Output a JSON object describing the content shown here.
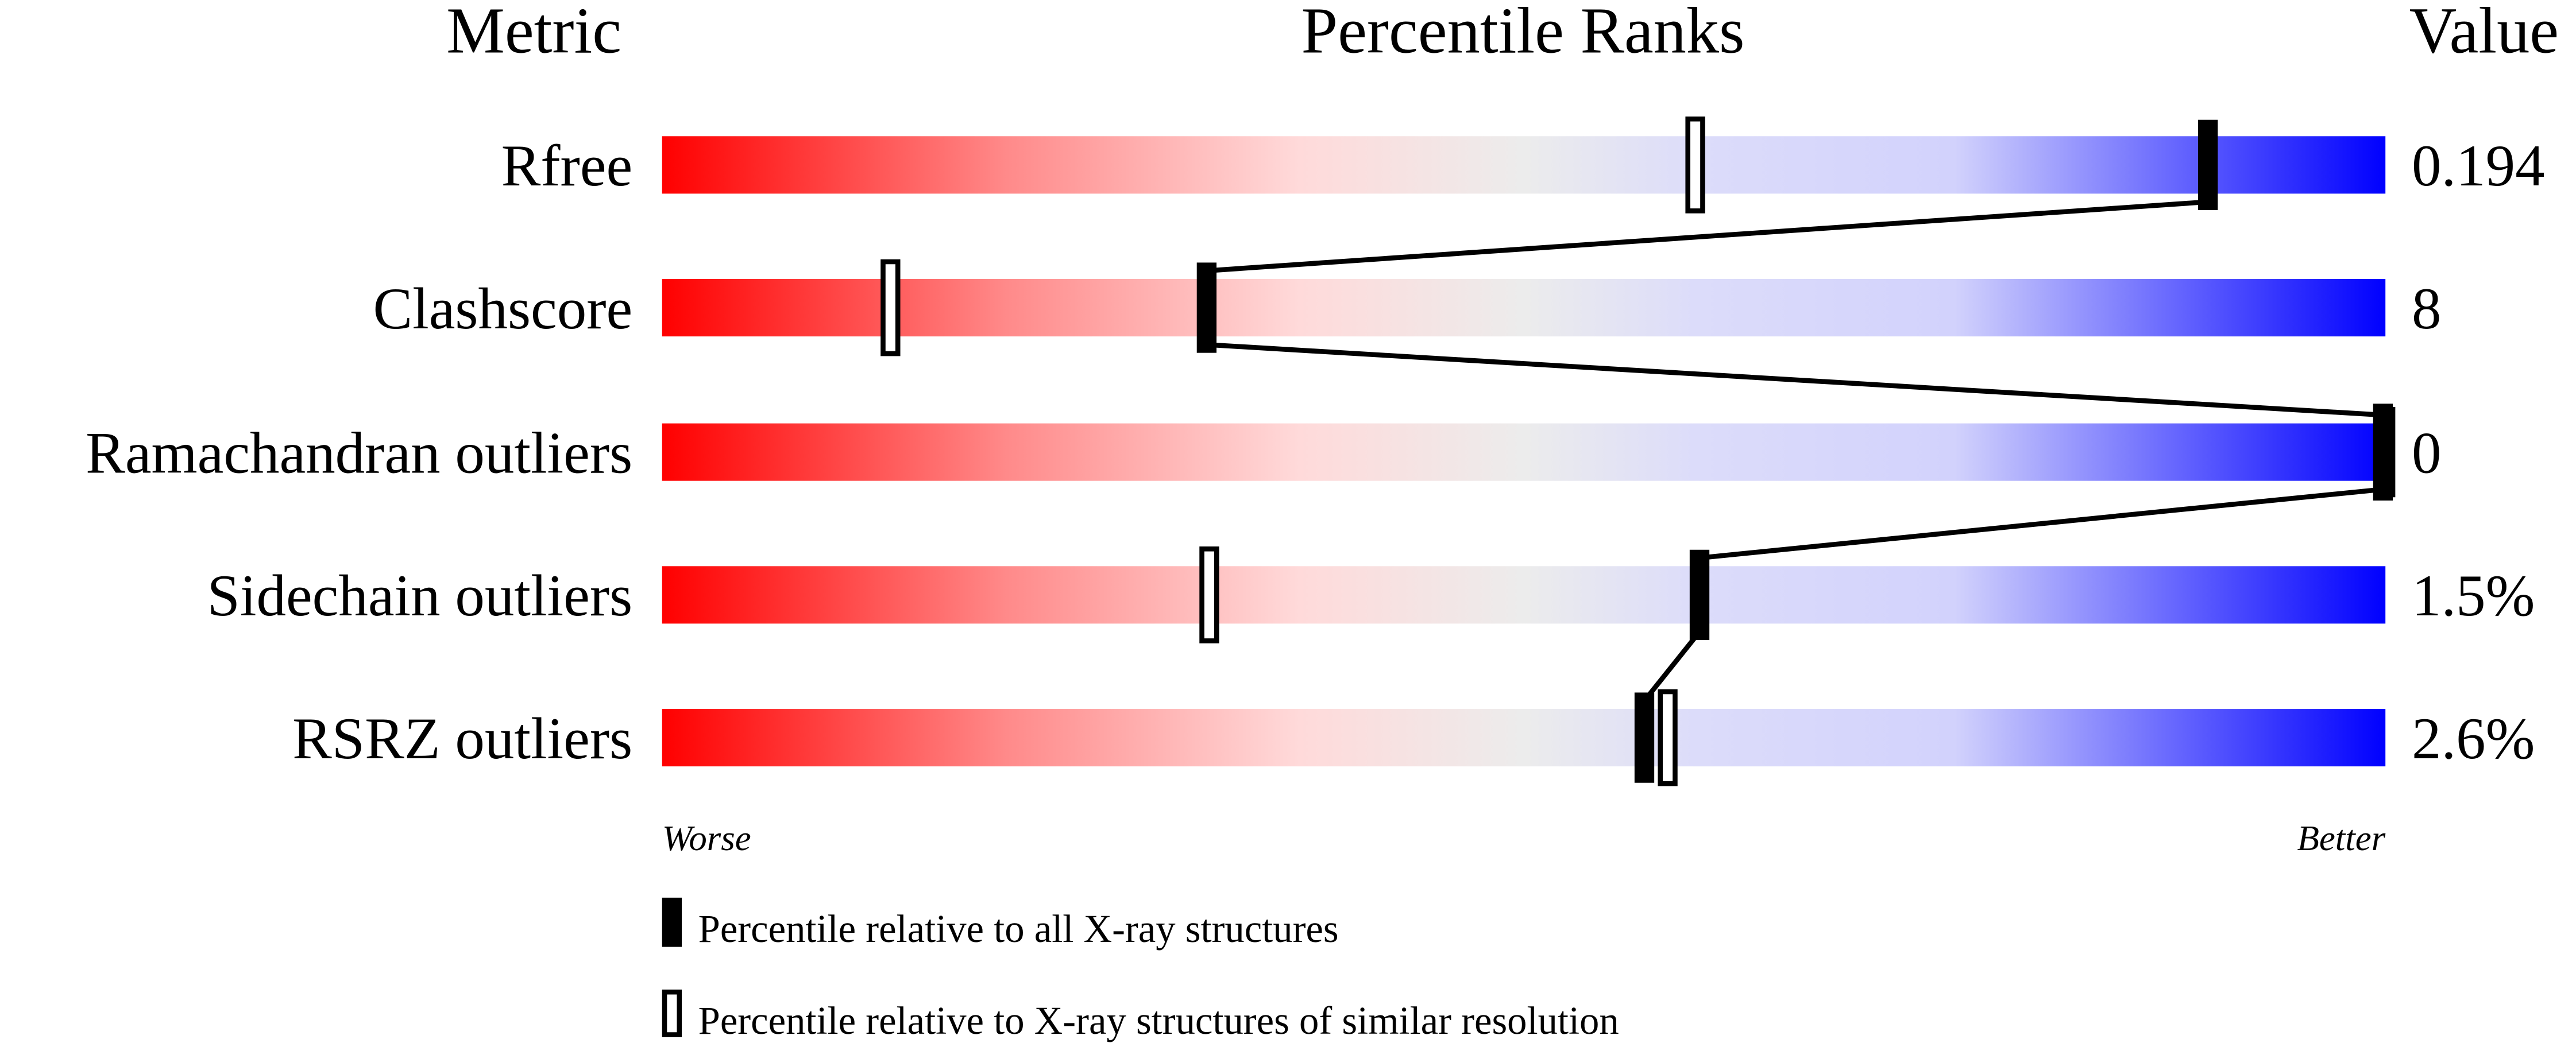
{
  "chart_data": {
    "type": "percentile-slider",
    "headers": {
      "metric": "Metric",
      "ranks": "Percentile Ranks",
      "value": "Value"
    },
    "xlim": [
      0,
      100
    ],
    "metrics": [
      {
        "name": "Rfree",
        "value": "0.194",
        "percentile_all": 89.7,
        "percentile_similar": 60.0
      },
      {
        "name": "Clashscore",
        "value": "8",
        "percentile_all": 31.6,
        "percentile_similar": 13.3
      },
      {
        "name": "Ramachandran outliers",
        "value": "0",
        "percentile_all": 100,
        "percentile_similar": 100
      },
      {
        "name": "Sidechain outliers",
        "value": "1.5%",
        "percentile_all": 60.2,
        "percentile_similar": 31.8
      },
      {
        "name": "RSRZ outliers",
        "value": "2.6%",
        "percentile_all": 57.0,
        "percentile_similar": 58.4
      }
    ],
    "axis_labels": {
      "worse": "Worse",
      "better": "Better"
    },
    "legend": {
      "all": "Percentile relative to all X-ray structures",
      "similar": "Percentile relative to X-ray structures of similar resolution"
    },
    "colors": {
      "worse": "#ff0000",
      "middle": "#eeeeee",
      "better": "#0000ff"
    }
  }
}
